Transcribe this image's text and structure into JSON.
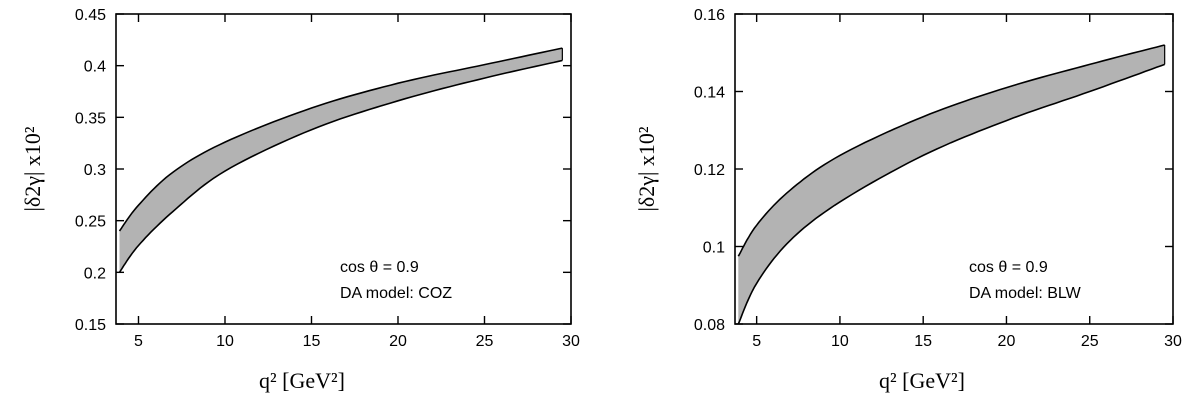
{
  "chart_data": [
    {
      "type": "area",
      "title": "",
      "xlabel": "q² [GeV²]",
      "ylabel": "|δ2γ| x10²",
      "xlim": [
        3.7,
        30
      ],
      "ylim": [
        0.15,
        0.45
      ],
      "xticks": [
        "5",
        "10",
        "15",
        "20",
        "25",
        "30"
      ],
      "yticks": [
        "0.15",
        "0.2",
        "0.25",
        "0.3",
        "0.35",
        "0.4",
        "0.45"
      ],
      "grid": false,
      "annotations": [
        "cos θ = 0.9",
        "DA model: COZ"
      ],
      "band": {
        "x": [
          3.9,
          5,
          7,
          10,
          15,
          20,
          25,
          29.5
        ],
        "upper": [
          0.24,
          0.265,
          0.297,
          0.326,
          0.359,
          0.383,
          0.401,
          0.417
        ],
        "lower": [
          0.2,
          0.226,
          0.259,
          0.298,
          0.338,
          0.366,
          0.388,
          0.405
        ],
        "fill_color": "#b3b3b3"
      }
    },
    {
      "type": "area",
      "title": "",
      "xlabel": "q² [GeV²]",
      "ylabel": "|δ2γ| x10²",
      "xlim": [
        3.7,
        30
      ],
      "ylim": [
        0.08,
        0.16
      ],
      "xticks": [
        "5",
        "10",
        "15",
        "20",
        "25",
        "30"
      ],
      "yticks": [
        "0.08",
        "0.1",
        "0.12",
        "0.14",
        "0.16"
      ],
      "grid": false,
      "annotations": [
        "cos θ = 0.9",
        "DA model: BLW"
      ],
      "band": {
        "x": [
          3.9,
          5,
          7,
          10,
          15,
          20,
          25,
          29.5
        ],
        "upper": [
          0.0975,
          0.1055,
          0.1145,
          0.1235,
          0.1335,
          0.141,
          0.147,
          0.152
        ],
        "lower": [
          0.08,
          0.0905,
          0.1015,
          0.1115,
          0.1235,
          0.1325,
          0.14,
          0.147
        ],
        "fill_color": "#b3b3b3"
      }
    }
  ]
}
